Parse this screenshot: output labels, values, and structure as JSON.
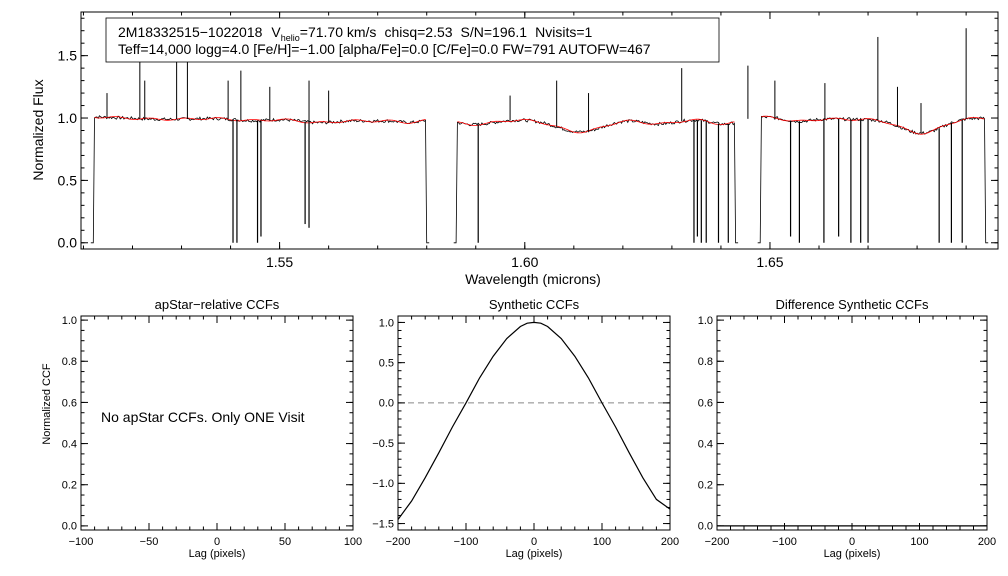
{
  "header": {
    "line1": {
      "star": "2M18332515−1022018",
      "v": "V",
      "v_sub": "helio",
      "v_value": "=71.70 km/s",
      "chisq": "chisq=2.53",
      "snr": "S/N=196.1",
      "nvisits": "Nvisits=1"
    },
    "line2": "Teff=14,000 logg=4.0 [Fe/H]=−1.00 [alpha/Fe]=0.0 [C/Fe]=0.0 FW=791 AUTOFW=467"
  },
  "colors": {
    "observed": "#000000",
    "model": "#ff0000",
    "zero_line": "#888888"
  },
  "no_ccf_message": "No apStar CCFs.  Only ONE Visit",
  "chart_data": [
    {
      "type": "line",
      "id": "spectrum",
      "xlabel": "Wavelength (microns)",
      "ylabel": "Normalized Flux",
      "xlim": [
        1.5095,
        1.6965
      ],
      "ylim": [
        -0.05,
        1.85
      ],
      "xticks": [
        1.55,
        1.6,
        1.65
      ],
      "xtick_labels": [
        "1.55",
        "1.60",
        "1.65"
      ],
      "yticks": [
        0.0,
        0.5,
        1.0,
        1.5
      ],
      "ytick_labels": [
        "0.0",
        "0.5",
        "1.0",
        "1.5"
      ],
      "chips": [
        [
          1.5115,
          1.5805
        ],
        [
          1.5855,
          1.6435
        ],
        [
          1.6475,
          1.6945
        ]
      ],
      "emission_lines": [
        [
          1.5148,
          1.2
        ],
        [
          1.5215,
          1.55
        ],
        [
          1.5225,
          1.3
        ],
        [
          1.529,
          1.45
        ],
        [
          1.5312,
          1.48
        ],
        [
          1.5395,
          1.3
        ],
        [
          1.5421,
          1.38
        ],
        [
          1.548,
          1.25
        ],
        [
          1.556,
          1.3
        ],
        [
          1.56,
          1.22
        ],
        [
          1.597,
          1.18
        ],
        [
          1.6065,
          1.3
        ],
        [
          1.613,
          1.2
        ],
        [
          1.632,
          1.4
        ],
        [
          1.6455,
          1.42
        ],
        [
          1.651,
          1.3
        ],
        [
          1.6612,
          1.28
        ],
        [
          1.672,
          1.65
        ],
        [
          1.676,
          1.25
        ],
        [
          1.6808,
          1.12
        ],
        [
          1.69,
          1.72
        ]
      ],
      "absorption_lines": [
        [
          1.5405,
          0.0
        ],
        [
          1.5413,
          0.0
        ],
        [
          1.5455,
          0.0
        ],
        [
          1.5462,
          0.05
        ],
        [
          1.5552,
          0.15
        ],
        [
          1.556,
          0.12
        ],
        [
          1.5905,
          0.0
        ],
        [
          1.6345,
          0.0
        ],
        [
          1.6352,
          0.05
        ],
        [
          1.636,
          0.0
        ],
        [
          1.637,
          0.0
        ],
        [
          1.6395,
          0.0
        ],
        [
          1.6415,
          0.0
        ],
        [
          1.6542,
          0.05
        ],
        [
          1.656,
          0.0
        ],
        [
          1.661,
          0.0
        ],
        [
          1.664,
          0.05
        ],
        [
          1.6665,
          0.0
        ],
        [
          1.6685,
          0.0
        ],
        [
          1.67,
          0.0
        ],
        [
          1.6845,
          0.0
        ],
        [
          1.687,
          0.0
        ],
        [
          1.6892,
          0.0
        ]
      ],
      "broad_features": [
        [
          1.5445,
          0.03,
          0.006
        ],
        [
          1.5575,
          0.03,
          0.006
        ],
        [
          1.57,
          0.02,
          0.005
        ],
        [
          1.577,
          0.04,
          0.004
        ],
        [
          1.589,
          0.05,
          0.006
        ],
        [
          1.6115,
          0.12,
          0.007
        ],
        [
          1.627,
          0.04,
          0.005
        ],
        [
          1.641,
          0.05,
          0.004
        ],
        [
          1.6555,
          0.03,
          0.004
        ],
        [
          1.681,
          0.13,
          0.006
        ]
      ]
    },
    {
      "type": "line",
      "id": "apstar-ccf",
      "title": "apStar−relative CCFs",
      "xlabel": "Lag (pixels)",
      "ylabel": "Normalized CCF",
      "xlim": [
        -100,
        100
      ],
      "ylim": [
        -0.02,
        1.02
      ],
      "xticks": [
        -100,
        -50,
        0,
        50,
        100
      ],
      "xtick_labels": [
        "−100",
        "−50",
        "0",
        "50",
        "100"
      ],
      "yticks": [
        0.0,
        0.2,
        0.4,
        0.6,
        0.8,
        1.0
      ],
      "ytick_labels": [
        "0.0",
        "0.2",
        "0.4",
        "0.6",
        "0.8",
        "1.0"
      ],
      "series": []
    },
    {
      "type": "line",
      "id": "synthetic-ccf",
      "title": "Synthetic CCFs",
      "xlabel": "Lag (pixels)",
      "ylabel": "",
      "xlim": [
        -200,
        200
      ],
      "ylim": [
        -1.58,
        1.08
      ],
      "xticks": [
        -200,
        -100,
        0,
        100,
        200
      ],
      "xtick_labels": [
        "−200",
        "−100",
        "0",
        "100",
        "200"
      ],
      "yticks": [
        -1.5,
        -1.0,
        -0.5,
        0.0,
        0.5,
        1.0
      ],
      "ytick_labels": [
        "−1.5",
        "−1.0",
        "−0.5",
        "0.0",
        "0.5",
        "1.0"
      ],
      "zero_line": 0.0,
      "series": [
        {
          "name": "CCF",
          "x": [
            -200,
            -180,
            -160,
            -140,
            -120,
            -100,
            -80,
            -60,
            -40,
            -20,
            -10,
            0,
            10,
            20,
            40,
            60,
            80,
            100,
            120,
            140,
            160,
            180,
            200
          ],
          "y": [
            -1.45,
            -1.22,
            -0.93,
            -0.62,
            -0.3,
            0.0,
            0.31,
            0.58,
            0.8,
            0.95,
            0.99,
            1.0,
            0.99,
            0.95,
            0.8,
            0.58,
            0.31,
            0.0,
            -0.3,
            -0.62,
            -0.93,
            -1.2,
            -1.32
          ]
        }
      ]
    },
    {
      "type": "line",
      "id": "diff-ccf",
      "title": "Difference Synthetic CCFs",
      "xlabel": "Lag (pixels)",
      "ylabel": "",
      "xlim": [
        -200,
        200
      ],
      "ylim": [
        -0.02,
        1.02
      ],
      "xticks": [
        -200,
        -100,
        0,
        100,
        200
      ],
      "xtick_labels": [
        "−200",
        "−100",
        "0",
        "100",
        "200"
      ],
      "yticks": [
        0.0,
        0.2,
        0.4,
        0.6,
        0.8,
        1.0
      ],
      "ytick_labels": [
        "0.0",
        "0.2",
        "0.4",
        "0.6",
        "0.8",
        "1.0"
      ],
      "series": [
        {
          "name": "difference",
          "x": [
            -200,
            200
          ],
          "y": [
            0.0,
            0.0
          ]
        }
      ]
    }
  ]
}
